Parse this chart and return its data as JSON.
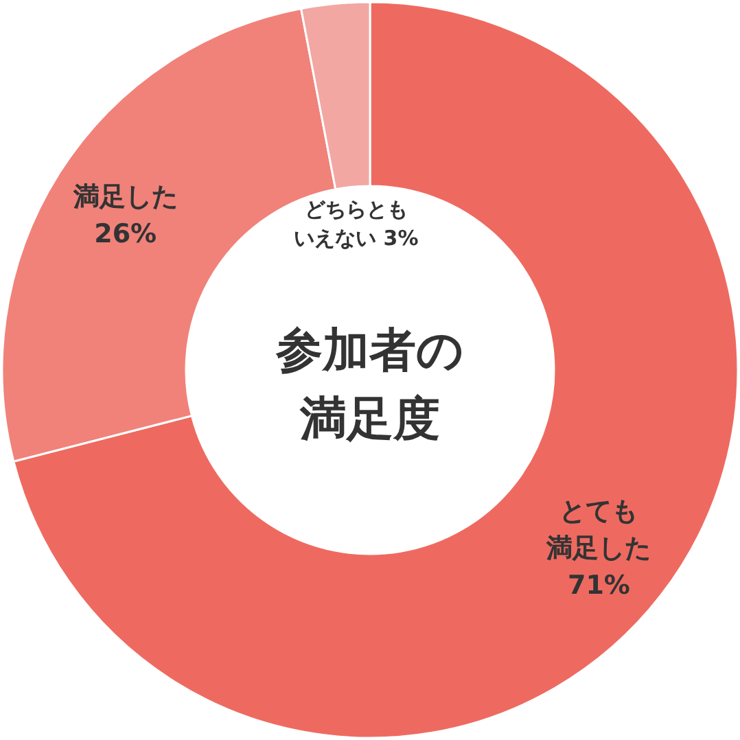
{
  "chart_data": {
    "type": "donut",
    "title": "参加者の満足度",
    "categories": [
      "とても満足した",
      "満足した",
      "どちらともいえない"
    ],
    "values": [
      71,
      26,
      3
    ],
    "value_labels": [
      "71%",
      "26%",
      "3%"
    ],
    "colors": [
      "#ee6a60",
      "#f0827a",
      "#f2a7a3"
    ]
  }
}
